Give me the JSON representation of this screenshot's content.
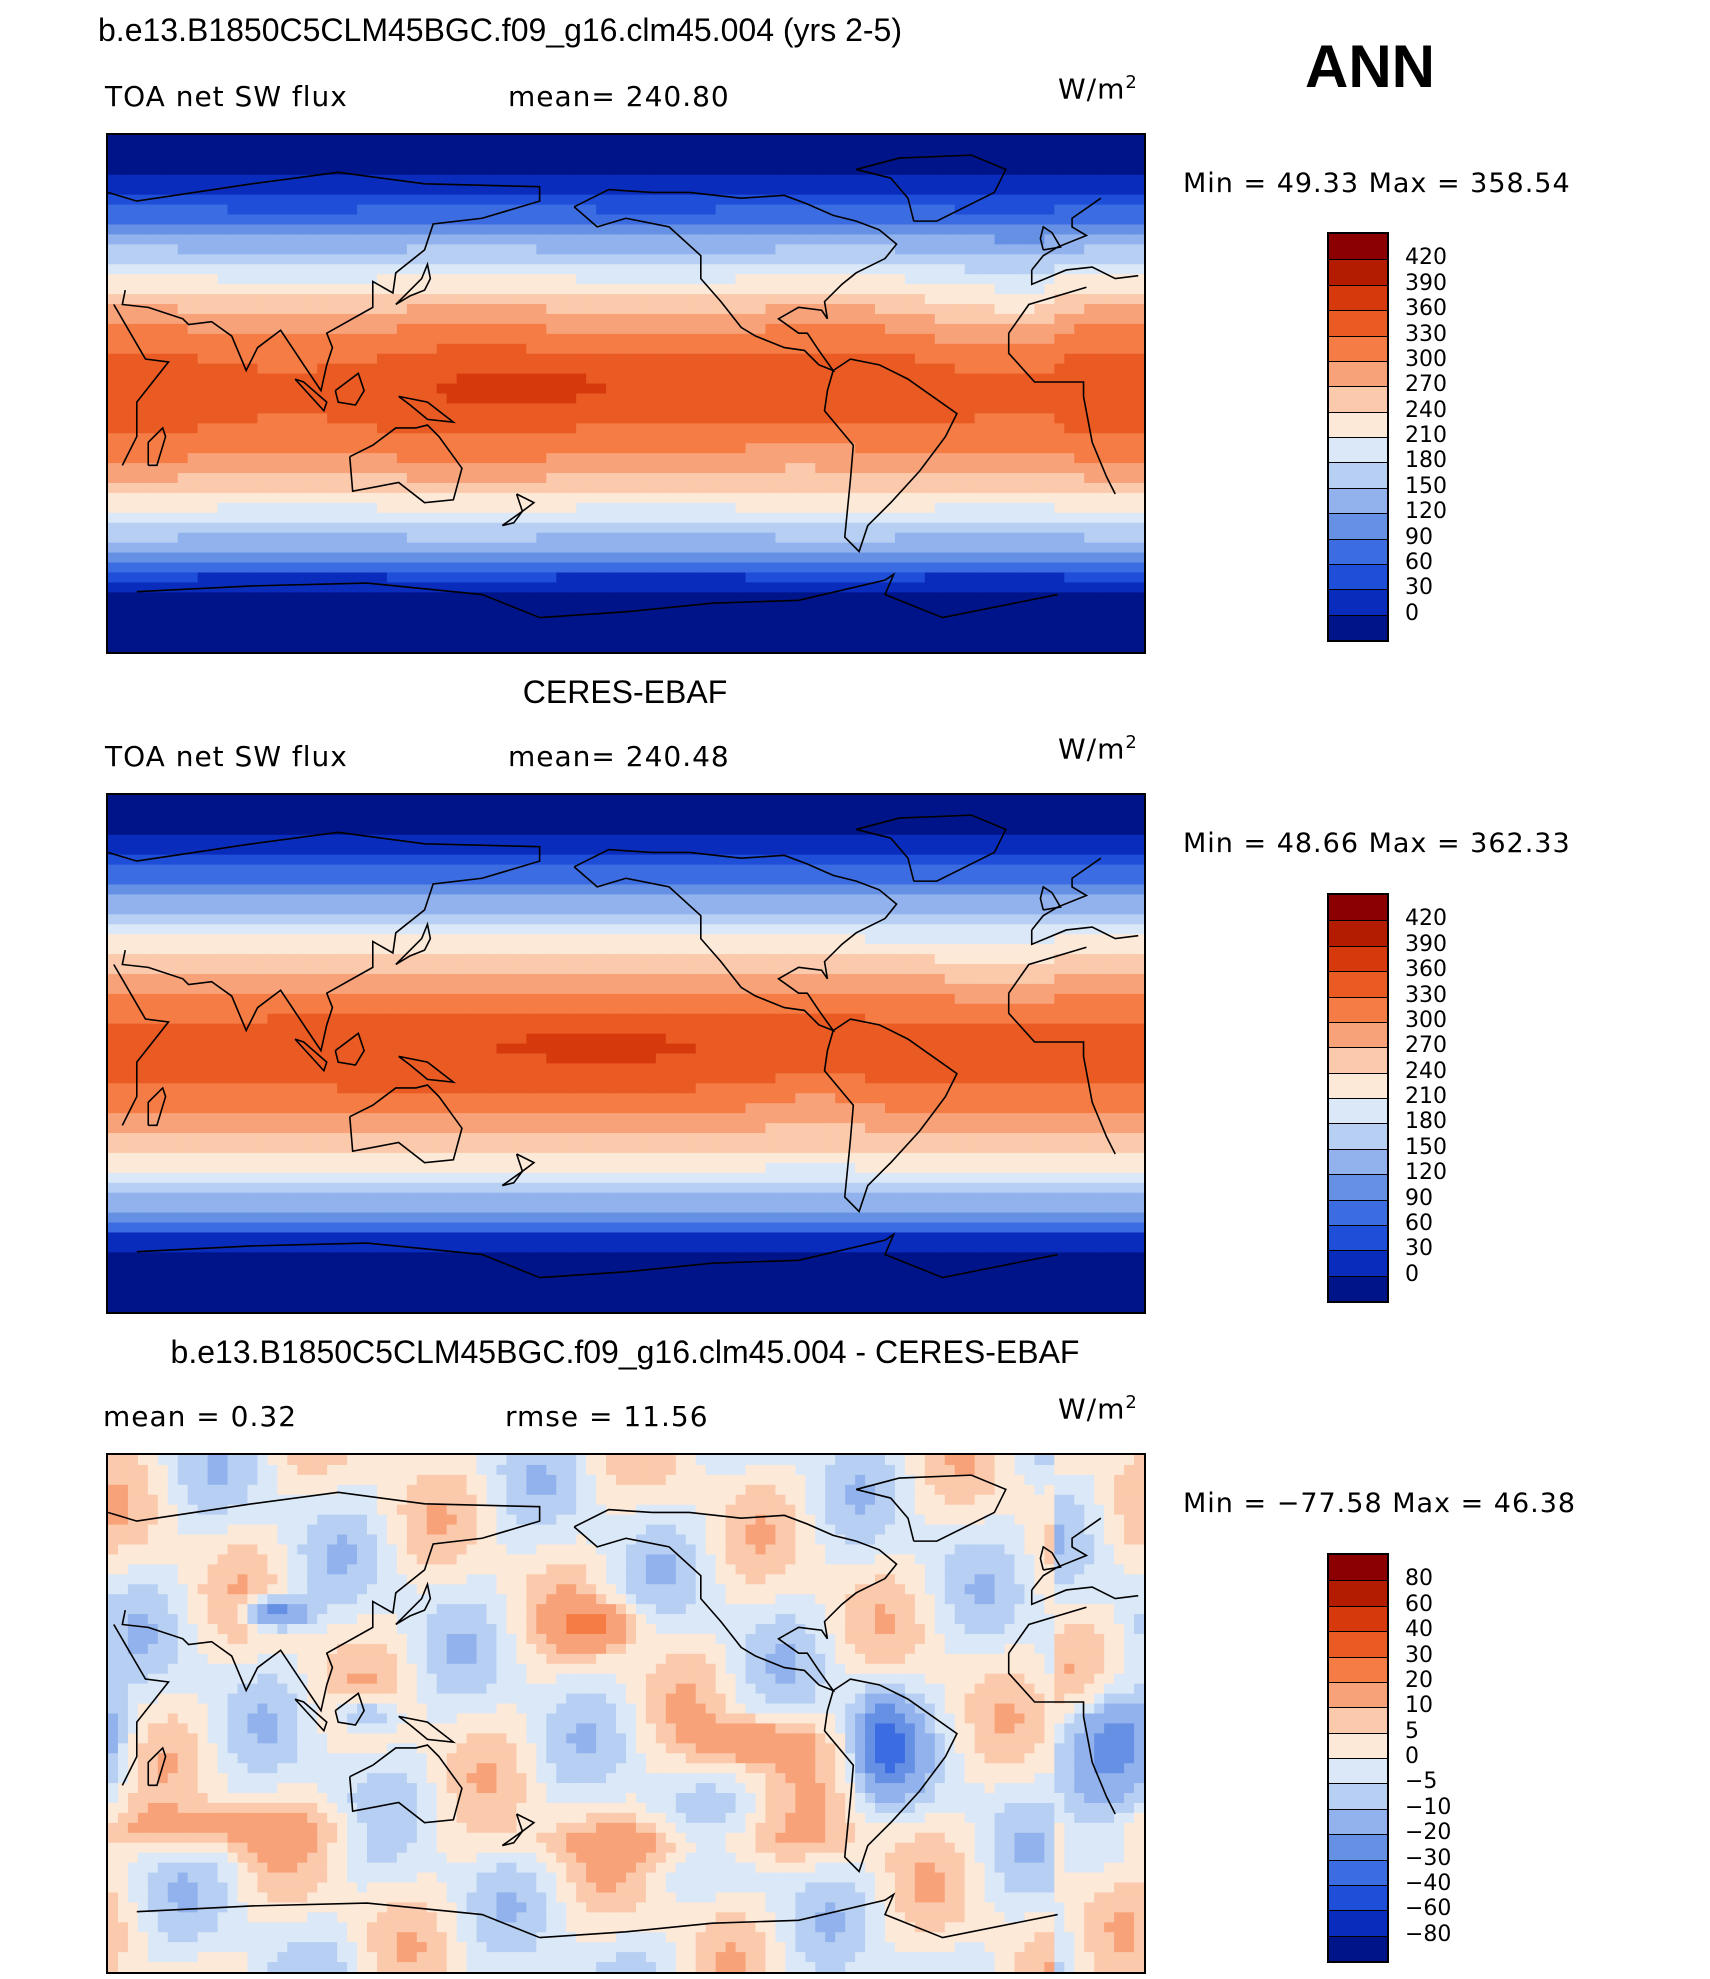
{
  "season": "ANN",
  "units": {
    "base": "W/m",
    "exp": "2"
  },
  "panels": [
    {
      "title": "b.e13.B1850C5CLM45BGC.f09_g16.clm45.004 (yrs 2-5)",
      "left_label": "TOA net SW flux",
      "center_label": "mean= 240.80",
      "minmax": "Min =    49.33  Max  =  358.54",
      "min": 49.33,
      "max": 358.54,
      "kind": "field",
      "colorbar_labels": [
        "420",
        "390",
        "360",
        "330",
        "300",
        "270",
        "240",
        "210",
        "180",
        "150",
        "120",
        "90",
        "60",
        "30",
        "0"
      ]
    },
    {
      "title": "CERES-EBAF",
      "left_label": "TOA net SW flux",
      "center_label": "mean= 240.48",
      "minmax": "Min =    48.66  Max  =  362.33",
      "min": 48.66,
      "max": 362.33,
      "kind": "field",
      "colorbar_labels": [
        "420",
        "390",
        "360",
        "330",
        "300",
        "270",
        "240",
        "210",
        "180",
        "150",
        "120",
        "90",
        "60",
        "30",
        "0"
      ]
    },
    {
      "title": "b.e13.B1850C5CLM45BGC.f09_g16.clm45.004 - CERES-EBAF",
      "left_label": "mean =     0.32",
      "center_label": "rmse  =    11.56",
      "minmax": "Min  = −77.58  Max  =    46.38",
      "min": -77.58,
      "max": 46.38,
      "kind": "diff",
      "colorbar_labels": [
        "80",
        "60",
        "40",
        "30",
        "20",
        "10",
        "5",
        "0",
        "−5",
        "−10",
        "−20",
        "−30",
        "−40",
        "−60",
        "−80"
      ]
    }
  ],
  "colors": {
    "field_scale": [
      "#8b0000",
      "#b31c00",
      "#d63a0c",
      "#ea5a23",
      "#f57d45",
      "#f8a27a",
      "#fbc9ab",
      "#fde9d8",
      "#dbe8f8",
      "#b7cff2",
      "#91b2ec",
      "#6590e4",
      "#3c6ce2",
      "#1f4ed8",
      "#0a2cbc",
      "#00148a"
    ],
    "diff_scale": [
      "#8b0000",
      "#b31c00",
      "#d63a0c",
      "#ea5a23",
      "#f57d45",
      "#f8a27a",
      "#fbc9ab",
      "#fde9d8",
      "#dbe8f8",
      "#b7cff2",
      "#91b2ec",
      "#6590e4",
      "#3c6ce2",
      "#1f4ed8",
      "#0a2cbc",
      "#00148a"
    ]
  }
}
